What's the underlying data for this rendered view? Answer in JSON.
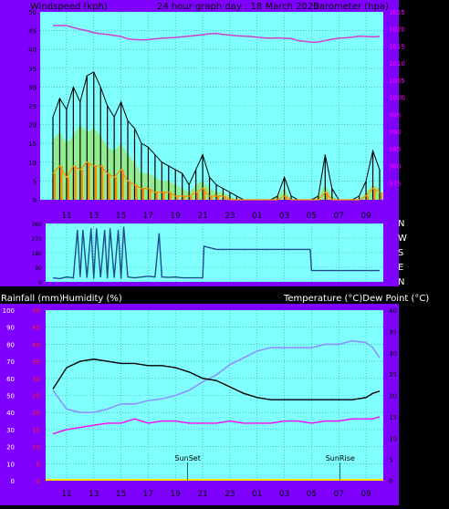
{
  "colors": {
    "frame": "#8000ff",
    "plot_bg": "#80ffff",
    "grid": "#2c9a9a",
    "header_text": "#000000",
    "wind_avg": "#ff8c00",
    "wind_gust": "#000000",
    "wind_fill": "#90ee90",
    "barometer": "#d040d0",
    "barometer_axis_text": "#ff00ff",
    "direction": "#1e4e8c",
    "temperature": "#000000",
    "dew_point": "#ff00ff",
    "humidity": "#9090ff",
    "rain_axis_text": "#ff2020",
    "marker_line": "#000000"
  },
  "header": {
    "left": "Windspeed (kph)",
    "center": "24 hour graph day : 18 March 2020",
    "right": "Barometer (hpa)"
  },
  "mid_header": {
    "left1": "Rainfall (mm)",
    "left2": "Humidity (%)",
    "right": "Temperature (°C)Dew Point (°C)"
  },
  "direction_labels": [
    "N",
    "W",
    "S",
    "E",
    "N"
  ],
  "markers": [
    {
      "label": "SunSet",
      "hour": 19.9
    },
    {
      "label": "SunRise",
      "hour": 7.1
    }
  ],
  "chart_data": [
    {
      "type": "line",
      "title": "24 hour graph day : 18 March 2020",
      "ylabel": "Windspeed (kph)",
      "y2label": "Barometer (hpa)",
      "x_ticks": [
        "11",
        "13",
        "15",
        "17",
        "19",
        "21",
        "23",
        "01",
        "03",
        "05",
        "07",
        "09"
      ],
      "x_tick_hours_from_start": [
        1,
        3,
        5,
        7,
        9,
        11,
        13,
        15,
        17,
        19,
        21,
        23
      ],
      "ylim": [
        0,
        50
      ],
      "y_ticks": [
        "0",
        "5",
        "10",
        "15",
        "20",
        "25",
        "30",
        "35",
        "40",
        "45",
        "50"
      ],
      "y2lim": [
        970,
        1025
      ],
      "y2_ticks": [
        "975",
        "980",
        "985",
        "990",
        "995",
        "1000",
        "1005",
        "1010",
        "1015",
        "1020",
        "1025"
      ],
      "x_hours_from_start": [
        0,
        0.5,
        1,
        1.5,
        2,
        2.5,
        3,
        3.5,
        4,
        4.5,
        5,
        5.5,
        6,
        6.5,
        7,
        7.5,
        8,
        8.5,
        9,
        9.5,
        10,
        10.5,
        11,
        11.5,
        12,
        12.5,
        13,
        13.5,
        14,
        14.5,
        15,
        15.5,
        16,
        16.5,
        17,
        17.5,
        18,
        18.5,
        19,
        19.5,
        20,
        20.5,
        21,
        21.5,
        22,
        22.5,
        23,
        23.5,
        24
      ],
      "series": [
        {
          "name": "Wind gust",
          "values": [
            22,
            27,
            24,
            30,
            26,
            33,
            34,
            30,
            25,
            22,
            26,
            21,
            19,
            15,
            14,
            12,
            10,
            9,
            8,
            7,
            4,
            8,
            12,
            6,
            4,
            3,
            2,
            1,
            0,
            0,
            0,
            0,
            0,
            1,
            6,
            1,
            0,
            0,
            0,
            1,
            12,
            3,
            0,
            0,
            0,
            1,
            5,
            13,
            8
          ]
        },
        {
          "name": "Wind speed",
          "values": [
            16,
            18,
            15,
            17,
            20,
            18,
            19,
            17,
            14,
            13,
            15,
            12,
            10,
            7,
            7,
            6,
            5,
            5,
            4,
            3,
            2,
            4,
            5,
            3,
            2,
            2,
            1,
            0,
            0,
            0,
            0,
            0,
            0,
            1,
            3,
            0,
            0,
            0,
            0,
            1,
            4,
            1,
            0,
            0,
            0,
            0,
            2,
            4,
            3
          ]
        },
        {
          "name": "Wind average",
          "values": [
            7,
            9,
            6,
            9,
            8,
            10,
            9,
            9,
            7,
            6,
            8,
            5,
            4,
            3,
            3,
            2,
            2,
            2,
            1,
            1,
            1,
            2,
            3,
            1,
            1,
            1,
            0,
            0,
            0,
            0,
            0,
            0,
            0,
            0,
            1,
            0,
            0,
            0,
            0,
            0,
            2,
            0,
            0,
            0,
            0,
            0,
            1,
            3,
            2
          ]
        },
        {
          "name": "Barometer",
          "values": [
            1021,
            1021,
            1021,
            1020.4,
            1019.9,
            1019.5,
            1018.9,
            1018.6,
            1018.4,
            1018.1,
            1017.8,
            1017.1,
            1016.9,
            1016.8,
            1016.9,
            1017.1,
            1017.3,
            1017.4,
            1017.5,
            1017.7,
            1017.9,
            1018.1,
            1018.3,
            1018.6,
            1018.7,
            1018.4,
            1018.2,
            1018,
            1017.9,
            1017.8,
            1017.6,
            1017.4,
            1017.3,
            1017.4,
            1017.3,
            1017.2,
            1016.6,
            1016.4,
            1016.1,
            1016.2,
            1016.6,
            1017,
            1017.3,
            1017.4,
            1017.6,
            1017.9,
            1017.8,
            1017.7,
            1017.8
          ]
        }
      ]
    },
    {
      "type": "line",
      "xlabel": "",
      "ylabel": "",
      "y_ticks": [
        "0",
        "90",
        "180",
        "270",
        "360"
      ],
      "ylim": [
        0,
        360
      ],
      "x_hours_from_start": [
        0,
        0.5,
        1,
        1.5,
        1.8,
        2,
        2.2,
        2.5,
        2.8,
        3,
        3.2,
        3.5,
        3.8,
        4,
        4.2,
        4.5,
        4.8,
        5,
        5.2,
        5.5,
        6,
        6.5,
        7,
        7.5,
        7.8,
        8,
        8.5,
        9,
        9.5,
        10,
        11,
        11.1,
        12,
        13,
        14,
        15,
        16,
        17,
        18,
        18.9,
        19,
        20,
        21,
        22,
        23,
        24
      ],
      "series": [
        {
          "name": "Wind direction",
          "values": [
            25,
            20,
            30,
            25,
            320,
            30,
            320,
            25,
            330,
            20,
            330,
            28,
            320,
            22,
            330,
            25,
            320,
            20,
            340,
            30,
            25,
            30,
            35,
            30,
            300,
            30,
            28,
            30,
            25,
            25,
            25,
            220,
            200,
            200,
            200,
            200,
            200,
            200,
            200,
            200,
            70,
            70,
            70,
            70,
            70,
            70
          ]
        }
      ]
    },
    {
      "type": "line",
      "ylabel": "Rainfall (mm) / Humidity (%)",
      "y2label": "Temperature (°C) / Dew Point (°C)",
      "x_ticks": [
        "11",
        "13",
        "15",
        "17",
        "19",
        "21",
        "23",
        "01",
        "03",
        "05",
        "07",
        "09"
      ],
      "x_tick_hours_from_start": [
        1,
        3,
        5,
        7,
        9,
        11,
        13,
        15,
        17,
        19,
        21,
        23
      ],
      "ylim": [
        0,
        100
      ],
      "y_ticks": [
        "0",
        "10",
        "20",
        "30",
        "40",
        "50",
        "60",
        "70",
        "80",
        "90",
        "100"
      ],
      "rain_ticks": [
        "0",
        "5",
        "10",
        "15",
        "20",
        "25",
        "30",
        "35",
        "40",
        "45",
        "50"
      ],
      "y2lim": [
        0,
        40
      ],
      "y2_ticks": [
        "0",
        "5",
        "10",
        "15",
        "20",
        "25",
        "30",
        "35",
        "40"
      ],
      "x_hours_from_start": [
        0,
        1,
        2,
        3,
        4,
        5,
        6,
        7,
        8,
        9,
        10,
        11,
        12,
        13,
        14,
        15,
        16,
        17,
        18,
        19,
        20,
        21,
        22,
        23,
        23.5,
        24
      ],
      "series": [
        {
          "name": "Temperature",
          "values": [
            21.5,
            26.5,
            28,
            28.5,
            28,
            27.5,
            27.5,
            27,
            27,
            26.5,
            25.5,
            24,
            23.5,
            22,
            20.5,
            19.5,
            19,
            19,
            19,
            19,
            19,
            19,
            19,
            19.5,
            20.5,
            21
          ]
        },
        {
          "name": "Dew Point",
          "values": [
            11,
            12,
            12.5,
            13,
            13.5,
            13.5,
            14.5,
            13.5,
            14,
            14,
            13.5,
            13.5,
            13.5,
            14,
            13.5,
            13.5,
            13.5,
            14,
            14,
            13.5,
            14,
            14,
            14.5,
            14.5,
            14.5,
            15
          ]
        },
        {
          "name": "Humidity",
          "values": [
            53,
            42,
            40,
            40,
            42,
            45,
            45,
            47,
            48,
            50,
            53,
            58,
            62,
            68,
            72,
            76,
            78,
            78,
            78,
            78,
            80,
            80,
            82,
            81,
            78,
            72
          ]
        },
        {
          "name": "Rainfall",
          "values": [
            0,
            0,
            0,
            0,
            0,
            0,
            0,
            0,
            0,
            0,
            0,
            0,
            0,
            0,
            0,
            0,
            0,
            0,
            0,
            0,
            0,
            0,
            0,
            0,
            0,
            0
          ]
        }
      ]
    }
  ]
}
